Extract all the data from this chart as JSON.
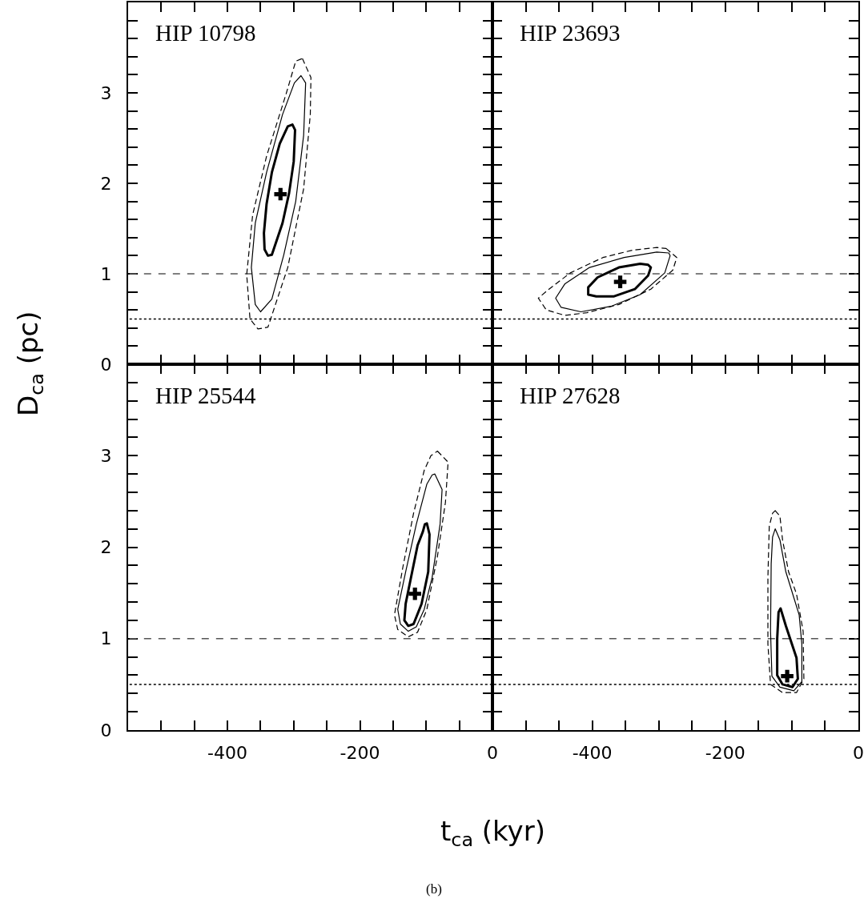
{
  "chart_data": [
    {
      "type": "scatter",
      "marker": "cross",
      "title": "HIP 10798",
      "ylabel": "D$_{ca}$ (pc)",
      "xlim": [
        -550,
        0
      ],
      "ylim": [
        0,
        4
      ],
      "tick_labels": "y",
      "xticks": [
        {
          "value": -500,
          "label": null
        },
        {
          "value": -450,
          "label": null
        },
        -400,
        {
          "value": -350,
          "label": null
        },
        {
          "value": -300,
          "label": null
        },
        {
          "value": -250,
          "label": null
        },
        -200,
        {
          "value": -150,
          "label": null
        },
        {
          "value": -100,
          "label": null
        },
        {
          "value": -50,
          "label": null
        },
        0
      ],
      "yticks": [
        0,
        {
          "value": 0.2,
          "label": null
        },
        {
          "value": 0.4,
          "label": null
        },
        {
          "value": 0.6,
          "label": null
        },
        {
          "value": 0.8,
          "label": null
        },
        1,
        {
          "value": 1.2,
          "label": null
        },
        {
          "value": 1.4,
          "label": null
        },
        {
          "value": 1.6,
          "label": null
        },
        {
          "value": 1.8,
          "label": null
        },
        2,
        {
          "value": 2.2,
          "label": null
        },
        {
          "value": 2.4,
          "label": null
        },
        {
          "value": 2.6,
          "label": null
        },
        {
          "value": 2.8,
          "label": null
        },
        3,
        {
          "value": 3.2,
          "label": null
        },
        {
          "value": 3.4,
          "label": null
        },
        {
          "value": 3.6,
          "label": null
        },
        {
          "value": 3.8,
          "label": null
        }
      ],
      "ref_lines": [
        {
          "axis": "y",
          "value": 1,
          "line_style": "dashed",
          "color": "#555555"
        },
        {
          "axis": "y",
          "value": 0.5,
          "line_style": "dotted",
          "color": "#000000"
        }
      ],
      "series": [
        {
          "color": "#000000",
          "x": [
            -320
          ],
          "values": [
            1.88
          ]
        }
      ]
    },
    {
      "type": "scatter",
      "marker": "cross",
      "title": "HIP 23693",
      "xlim": [
        -550,
        0
      ],
      "ylim": [
        0,
        4
      ],
      "tick_labels": false,
      "xticks": [
        {
          "value": -500,
          "label": null
        },
        {
          "value": -450,
          "label": null
        },
        -400,
        {
          "value": -350,
          "label": null
        },
        {
          "value": -300,
          "label": null
        },
        {
          "value": -250,
          "label": null
        },
        -200,
        {
          "value": -150,
          "label": null
        },
        {
          "value": -100,
          "label": null
        },
        {
          "value": -50,
          "label": null
        },
        0
      ],
      "yticks": [
        0,
        {
          "value": 0.2,
          "label": null
        },
        {
          "value": 0.4,
          "label": null
        },
        {
          "value": 0.6,
          "label": null
        },
        {
          "value": 0.8,
          "label": null
        },
        1,
        {
          "value": 1.2,
          "label": null
        },
        {
          "value": 1.4,
          "label": null
        },
        {
          "value": 1.6,
          "label": null
        },
        {
          "value": 1.8,
          "label": null
        },
        2,
        {
          "value": 2.2,
          "label": null
        },
        {
          "value": 2.4,
          "label": null
        },
        {
          "value": 2.6,
          "label": null
        },
        {
          "value": 2.8,
          "label": null
        },
        3,
        {
          "value": 3.2,
          "label": null
        },
        {
          "value": 3.4,
          "label": null
        },
        {
          "value": 3.6,
          "label": null
        },
        {
          "value": 3.8,
          "label": null
        }
      ],
      "ref_lines": [
        {
          "axis": "y",
          "value": 1,
          "line_style": "dashed",
          "color": "#555555"
        },
        {
          "axis": "y",
          "value": 0.5,
          "line_style": "dotted",
          "color": "#000000"
        }
      ],
      "series": [
        {
          "color": "#000000",
          "x": [
            -358
          ],
          "values": [
            0.91
          ]
        }
      ]
    },
    {
      "type": "scatter",
      "marker": "cross",
      "title": "HIP 25544",
      "xlabel": "t$_{ca}$ (kyr)",
      "annotations": [
        "(b)"
      ],
      "xlim": [
        -550,
        0
      ],
      "ylim": [
        0,
        4
      ],
      "xticks": [
        {
          "value": -500,
          "label": null
        },
        {
          "value": -450,
          "label": null
        },
        -400,
        {
          "value": -350,
          "label": null
        },
        {
          "value": -300,
          "label": null
        },
        {
          "value": -250,
          "label": null
        },
        -200,
        {
          "value": -150,
          "label": null
        },
        {
          "value": -100,
          "label": null
        },
        {
          "value": -50,
          "label": null
        },
        0
      ],
      "yticks": [
        0,
        {
          "value": 0.2,
          "label": null
        },
        {
          "value": 0.4,
          "label": null
        },
        {
          "value": 0.6,
          "label": null
        },
        {
          "value": 0.8,
          "label": null
        },
        1,
        {
          "value": 1.2,
          "label": null
        },
        {
          "value": 1.4,
          "label": null
        },
        {
          "value": 1.6,
          "label": null
        },
        {
          "value": 1.8,
          "label": null
        },
        2,
        {
          "value": 2.2,
          "label": null
        },
        {
          "value": 2.4,
          "label": null
        },
        {
          "value": 2.6,
          "label": null
        },
        {
          "value": 2.8,
          "label": null
        },
        3,
        {
          "value": 3.2,
          "label": null
        },
        {
          "value": 3.4,
          "label": null
        },
        {
          "value": 3.6,
          "label": null
        },
        {
          "value": 3.8,
          "label": null
        }
      ],
      "ref_lines": [
        {
          "axis": "y",
          "value": 1,
          "line_style": "dashed",
          "color": "#555555"
        },
        {
          "axis": "y",
          "value": 0.5,
          "line_style": "dotted",
          "color": "#000000"
        }
      ],
      "series": [
        {
          "color": "#000000",
          "x": [
            -117
          ],
          "values": [
            1.49
          ]
        }
      ]
    },
    {
      "type": "scatter",
      "marker": "cross",
      "title": "HIP 27628",
      "xlim": [
        -550,
        0
      ],
      "ylim": [
        0,
        4
      ],
      "tick_labels": "x",
      "xticks": [
        {
          "value": -500,
          "label": null
        },
        {
          "value": -450,
          "label": null
        },
        -400,
        {
          "value": -350,
          "label": null
        },
        {
          "value": -300,
          "label": null
        },
        {
          "value": -250,
          "label": null
        },
        -200,
        {
          "value": -150,
          "label": null
        },
        {
          "value": -100,
          "label": null
        },
        {
          "value": -50,
          "label": null
        },
        0
      ],
      "yticks": [
        0,
        {
          "value": 0.2,
          "label": null
        },
        {
          "value": 0.4,
          "label": null
        },
        {
          "value": 0.6,
          "label": null
        },
        {
          "value": 0.8,
          "label": null
        },
        1,
        {
          "value": 1.2,
          "label": null
        },
        {
          "value": 1.4,
          "label": null
        },
        {
          "value": 1.6,
          "label": null
        },
        {
          "value": 1.8,
          "label": null
        },
        2,
        {
          "value": 2.2,
          "label": null
        },
        {
          "value": 2.4,
          "label": null
        },
        {
          "value": 2.6,
          "label": null
        },
        {
          "value": 2.8,
          "label": null
        },
        3,
        {
          "value": 3.2,
          "label": null
        },
        {
          "value": 3.4,
          "label": null
        },
        {
          "value": 3.6,
          "label": null
        },
        {
          "value": 3.8,
          "label": null
        }
      ],
      "ref_lines": [
        {
          "axis": "y",
          "value": 1,
          "line_style": "dashed",
          "color": "#555555"
        },
        {
          "axis": "y",
          "value": 0.5,
          "line_style": "dotted",
          "color": "#000000"
        }
      ],
      "series": [
        {
          "color": "#000000",
          "x": [
            -107
          ],
          "values": [
            0.59
          ]
        }
      ]
    }
  ]
}
